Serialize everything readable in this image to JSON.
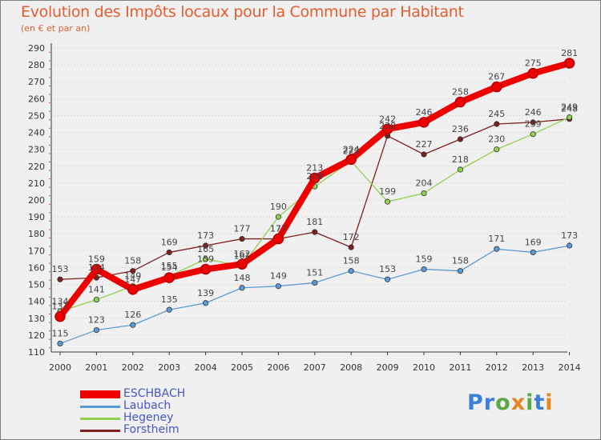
{
  "header": {
    "title": "Evolution des Impôts locaux pour la Commune par Habitant",
    "subtitle": "(en € et par an)"
  },
  "brand": {
    "letters": [
      "P",
      "r",
      "o",
      "x",
      "i",
      "t",
      "i"
    ],
    "colors": [
      "#3c7fd8",
      "#3c7fd8",
      "#5aa848",
      "#e8841e",
      "#5aa848",
      "#3c7fd8",
      "#e8841e"
    ]
  },
  "chart_data": {
    "type": "line",
    "title": "Evolution des Impôts locaux pour la Commune par Habitant",
    "subtitle": "(en € et par an)",
    "xlabel": "",
    "ylabel": "",
    "x": [
      2000,
      2001,
      2002,
      2003,
      2004,
      2005,
      2006,
      2007,
      2008,
      2009,
      2010,
      2011,
      2012,
      2013,
      2014
    ],
    "ylim": [
      110,
      290
    ],
    "yticks": [
      110,
      120,
      130,
      140,
      150,
      160,
      170,
      180,
      190,
      200,
      210,
      220,
      230,
      240,
      250,
      260,
      270,
      280,
      290
    ],
    "grid": "horizontal dotted",
    "legend_position": "bottom-left",
    "series": [
      {
        "name": "ESCHBACH",
        "color": "#ee0000",
        "values": [
          131,
          159,
          147,
          154,
          159,
          162,
          177,
          213,
          224,
          242,
          246,
          258,
          267,
          275,
          281
        ],
        "labels": [
          null,
          null,
          null,
          null,
          null,
          null,
          null,
          "213",
          "224",
          "242",
          "246",
          "258",
          "267",
          "275",
          "281"
        ]
      },
      {
        "name": "Laubach",
        "color": "#5b9bd5",
        "values": [
          115,
          123,
          126,
          135,
          139,
          148,
          149,
          151,
          158,
          153,
          159,
          158,
          171,
          169,
          173
        ]
      },
      {
        "name": "Hegeney",
        "color": "#92d050",
        "values": [
          134,
          141,
          149,
          155,
          165,
          161,
          190,
          208,
          223,
          199,
          204,
          218,
          230,
          239,
          249
        ]
      },
      {
        "name": "Forstheim",
        "color": "#7f2020",
        "values": [
          153,
          154,
          158,
          169,
          173,
          177,
          177,
          181,
          172,
          238,
          227,
          236,
          245,
          246,
          248
        ]
      }
    ],
    "point_labels": [
      {
        "series": 3,
        "i": 0,
        "text": "153"
      },
      {
        "series": 2,
        "i": 0,
        "text": "134"
      },
      {
        "series": 0,
        "i": 0,
        "text": "131"
      },
      {
        "series": 1,
        "i": 0,
        "text": "115"
      },
      {
        "series": 0,
        "i": 1,
        "text": "159"
      },
      {
        "series": 3,
        "i": 1,
        "text": "154"
      },
      {
        "series": 2,
        "i": 1,
        "text": "141"
      },
      {
        "series": 1,
        "i": 1,
        "text": "123"
      },
      {
        "series": 3,
        "i": 2,
        "text": "158"
      },
      {
        "series": 2,
        "i": 2,
        "text": "149"
      },
      {
        "series": 0,
        "i": 2,
        "text": "147"
      },
      {
        "series": 1,
        "i": 2,
        "text": "126"
      },
      {
        "series": 3,
        "i": 3,
        "text": "169"
      },
      {
        "series": 2,
        "i": 3,
        "text": "155"
      },
      {
        "series": 0,
        "i": 3,
        "text": "154"
      },
      {
        "series": 1,
        "i": 3,
        "text": "135"
      },
      {
        "series": 3,
        "i": 4,
        "text": "173"
      },
      {
        "series": 2,
        "i": 4,
        "text": "165"
      },
      {
        "series": 0,
        "i": 4,
        "text": "159"
      },
      {
        "series": 1,
        "i": 4,
        "text": "139"
      },
      {
        "series": 3,
        "i": 5,
        "text": "177"
      },
      {
        "series": 0,
        "i": 5,
        "text": "162"
      },
      {
        "series": 2,
        "i": 5,
        "text": "161"
      },
      {
        "series": 1,
        "i": 5,
        "text": "148"
      },
      {
        "series": 2,
        "i": 6,
        "text": "190"
      },
      {
        "series": 0,
        "i": 6,
        "text": "177"
      },
      {
        "series": 3,
        "i": 6,
        "text": "177"
      },
      {
        "series": 1,
        "i": 6,
        "text": "149"
      },
      {
        "series": 0,
        "i": 7,
        "text": "213"
      },
      {
        "series": 2,
        "i": 7,
        "text": "208"
      },
      {
        "series": 3,
        "i": 7,
        "text": "181"
      },
      {
        "series": 1,
        "i": 7,
        "text": "151"
      },
      {
        "series": 0,
        "i": 8,
        "text": "224"
      },
      {
        "series": 2,
        "i": 8,
        "text": "223"
      },
      {
        "series": 3,
        "i": 8,
        "text": "172"
      },
      {
        "series": 1,
        "i": 8,
        "text": "158"
      },
      {
        "series": 0,
        "i": 9,
        "text": "242"
      },
      {
        "series": 3,
        "i": 9,
        "text": "238"
      },
      {
        "series": 2,
        "i": 9,
        "text": "199"
      },
      {
        "series": 1,
        "i": 9,
        "text": "153"
      },
      {
        "series": 0,
        "i": 10,
        "text": "246"
      },
      {
        "series": 3,
        "i": 10,
        "text": "227"
      },
      {
        "series": 2,
        "i": 10,
        "text": "204"
      },
      {
        "series": 1,
        "i": 10,
        "text": "159"
      },
      {
        "series": 0,
        "i": 11,
        "text": "258"
      },
      {
        "series": 3,
        "i": 11,
        "text": "236"
      },
      {
        "series": 2,
        "i": 11,
        "text": "218"
      },
      {
        "series": 1,
        "i": 11,
        "text": "158"
      },
      {
        "series": 0,
        "i": 12,
        "text": "267"
      },
      {
        "series": 3,
        "i": 12,
        "text": "245"
      },
      {
        "series": 2,
        "i": 12,
        "text": "230"
      },
      {
        "series": 1,
        "i": 12,
        "text": "171"
      },
      {
        "series": 0,
        "i": 13,
        "text": "275"
      },
      {
        "series": 3,
        "i": 13,
        "text": "246"
      },
      {
        "series": 2,
        "i": 13,
        "text": "239"
      },
      {
        "series": 1,
        "i": 13,
        "text": "169"
      },
      {
        "series": 0,
        "i": 14,
        "text": "281"
      },
      {
        "series": 2,
        "i": 14,
        "text": "249"
      },
      {
        "series": 3,
        "i": 14,
        "text": "248"
      },
      {
        "series": 1,
        "i": 14,
        "text": "173"
      }
    ]
  },
  "legend": {
    "items": [
      {
        "label": "ESCHBACH",
        "color": "#ee0000"
      },
      {
        "label": "Laubach",
        "color": "#5b9bd5"
      },
      {
        "label": "Hegeney",
        "color": "#92d050"
      },
      {
        "label": "Forstheim",
        "color": "#7f2020"
      }
    ]
  }
}
